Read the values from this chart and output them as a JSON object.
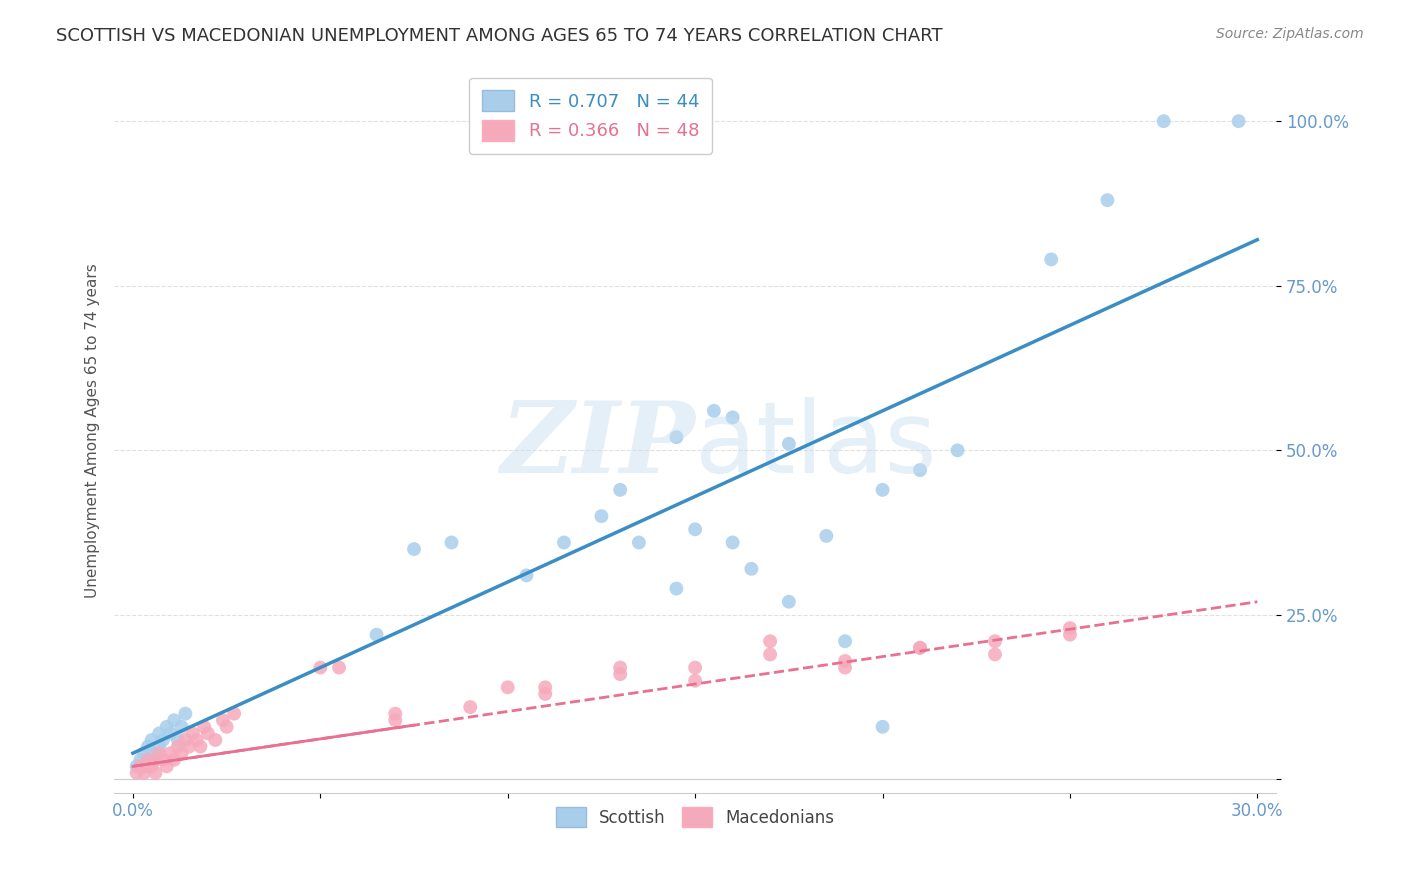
{
  "title": "SCOTTISH VS MACEDONIAN UNEMPLOYMENT AMONG AGES 65 TO 74 YEARS CORRELATION CHART",
  "source": "Source: ZipAtlas.com",
  "ylabel": "Unemployment Among Ages 65 to 74 years",
  "xlim": [
    -0.005,
    0.305
  ],
  "ylim": [
    -0.02,
    1.08
  ],
  "xticks": [
    0.0,
    0.05,
    0.1,
    0.15,
    0.2,
    0.25,
    0.3
  ],
  "xtick_labels": [
    "0.0%",
    "",
    "",
    "",
    "",
    "",
    "30.0%"
  ],
  "yticks": [
    0.0,
    0.25,
    0.5,
    0.75,
    1.0
  ],
  "ytick_labels_right": [
    "",
    "25.0%",
    "50.0%",
    "75.0%",
    "100.0%"
  ],
  "watermark": "ZIPatlas",
  "scottish_color": "#A8CEEB",
  "macedonian_color": "#F5AABB",
  "scottish_line_color": "#3A8EC4",
  "macedonian_line_color": "#E87090",
  "legend_scottish_label": "R = 0.707   N = 44",
  "legend_macedonian_label": "R = 0.366   N = 48",
  "legend_bottom_scottish": "Scottish",
  "legend_bottom_macedonian": "Macedonians",
  "background_color": "#FFFFFF",
  "grid_color": "#DDDDDD",
  "title_color": "#333333",
  "tick_color": "#6699CC",
  "scottish_x": [
    0.001,
    0.002,
    0.003,
    0.003,
    0.004,
    0.005,
    0.005,
    0.006,
    0.007,
    0.007,
    0.008,
    0.009,
    0.01,
    0.011,
    0.012,
    0.013,
    0.014,
    0.065,
    0.075,
    0.085,
    0.105,
    0.115,
    0.125,
    0.13,
    0.135,
    0.145,
    0.15,
    0.155,
    0.16,
    0.165,
    0.175,
    0.185,
    0.19,
    0.2,
    0.21,
    0.22,
    0.245,
    0.26,
    0.275,
    0.295,
    0.145,
    0.16,
    0.175,
    0.2
  ],
  "scottish_y": [
    0.02,
    0.03,
    0.04,
    0.02,
    0.05,
    0.04,
    0.06,
    0.03,
    0.05,
    0.07,
    0.06,
    0.08,
    0.07,
    0.09,
    0.06,
    0.08,
    0.1,
    0.22,
    0.35,
    0.36,
    0.31,
    0.36,
    0.4,
    0.44,
    0.36,
    0.52,
    0.38,
    0.56,
    0.36,
    0.32,
    0.27,
    0.37,
    0.21,
    0.44,
    0.47,
    0.5,
    0.79,
    0.88,
    1.0,
    1.0,
    0.29,
    0.55,
    0.51,
    0.08
  ],
  "macedonian_x": [
    0.001,
    0.002,
    0.003,
    0.004,
    0.004,
    0.005,
    0.006,
    0.006,
    0.007,
    0.008,
    0.009,
    0.01,
    0.011,
    0.012,
    0.013,
    0.014,
    0.015,
    0.016,
    0.017,
    0.018,
    0.019,
    0.02,
    0.022,
    0.024,
    0.025,
    0.027,
    0.055,
    0.07,
    0.09,
    0.1,
    0.11,
    0.13,
    0.15,
    0.17,
    0.19,
    0.21,
    0.23,
    0.25,
    0.11,
    0.13,
    0.15,
    0.17,
    0.19,
    0.21,
    0.23,
    0.25,
    0.05,
    0.07
  ],
  "macedonian_y": [
    0.01,
    0.02,
    0.01,
    0.02,
    0.03,
    0.02,
    0.01,
    0.03,
    0.04,
    0.03,
    0.02,
    0.04,
    0.03,
    0.05,
    0.04,
    0.06,
    0.05,
    0.07,
    0.06,
    0.05,
    0.08,
    0.07,
    0.06,
    0.09,
    0.08,
    0.1,
    0.17,
    0.09,
    0.11,
    0.14,
    0.13,
    0.17,
    0.15,
    0.19,
    0.17,
    0.2,
    0.19,
    0.22,
    0.14,
    0.16,
    0.17,
    0.21,
    0.18,
    0.2,
    0.21,
    0.23,
    0.17,
    0.1
  ],
  "sc_line_x0": 0.0,
  "sc_line_y0": 0.04,
  "sc_line_x1": 0.3,
  "sc_line_y1": 0.82,
  "mac_line_x0": 0.0,
  "mac_line_y0": 0.02,
  "mac_line_x1": 0.3,
  "mac_line_y1": 0.27
}
